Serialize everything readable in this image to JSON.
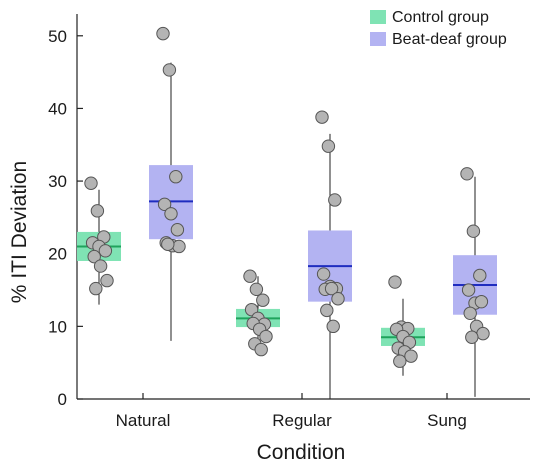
{
  "chart_data": {
    "type": "box",
    "xlabel": "Condition",
    "ylabel": "% ITI Deviation",
    "ylim": [
      0,
      53
    ],
    "yticks": [
      0,
      10,
      20,
      30,
      40,
      50
    ],
    "categories": [
      "Natural",
      "Regular",
      "Sung"
    ],
    "legend_position": "top-right",
    "series": [
      {
        "name": "Control group",
        "box_color": "#7fe3b4",
        "line_color": "#1fa35c",
        "boxes": [
          {
            "category": "Natural",
            "median": 21.0,
            "q1": 19.0,
            "q3": 23.0,
            "whisker_low": 13.0,
            "whisker_high": 28.8,
            "points": [
              29.7,
              25.9,
              22.3,
              21.5,
              21.0,
              20.4,
              19.6,
              18.3,
              16.3,
              15.2
            ]
          },
          {
            "category": "Regular",
            "median": 11.1,
            "q1": 9.9,
            "q3": 12.4,
            "whisker_low": 6.0,
            "whisker_high": 16.9,
            "points": [
              16.9,
              15.1,
              13.6,
              12.3,
              11.1,
              10.3,
              10.4,
              9.6,
              8.6,
              7.6,
              6.8
            ]
          },
          {
            "category": "Sung",
            "median": 8.5,
            "q1": 7.3,
            "q3": 9.8,
            "whisker_low": 3.2,
            "whisker_high": 13.8,
            "points": [
              16.1,
              9.9,
              9.7,
              9.6,
              8.6,
              7.8,
              7.0,
              6.5,
              5.9,
              5.2
            ]
          }
        ]
      },
      {
        "name": "Beat-deaf group",
        "box_color": "#b3b3f2",
        "line_color": "#1f2dbf",
        "boxes": [
          {
            "category": "Natural",
            "median": 27.2,
            "q1": 22.0,
            "q3": 32.2,
            "whisker_low": 8.0,
            "whisker_high": 46.3,
            "points": [
              50.3,
              45.3,
              30.6,
              26.8,
              25.5,
              23.3,
              21.5,
              21.1,
              21.0,
              21.3
            ]
          },
          {
            "category": "Regular",
            "median": 18.3,
            "q1": 13.4,
            "q3": 23.2,
            "whisker_low": 0.0,
            "whisker_high": 36.5,
            "points": [
              38.8,
              34.8,
              27.4,
              17.2,
              15.5,
              15.2,
              15.1,
              15.2,
              13.8,
              12.2,
              10.0
            ]
          },
          {
            "category": "Sung",
            "median": 15.7,
            "q1": 11.6,
            "q3": 19.8,
            "whisker_low": 0.3,
            "whisker_high": 30.6,
            "points": [
              31.0,
              23.1,
              17.0,
              15.0,
              13.2,
              13.4,
              11.8,
              10.0,
              9.0,
              8.5
            ]
          }
        ]
      }
    ]
  }
}
